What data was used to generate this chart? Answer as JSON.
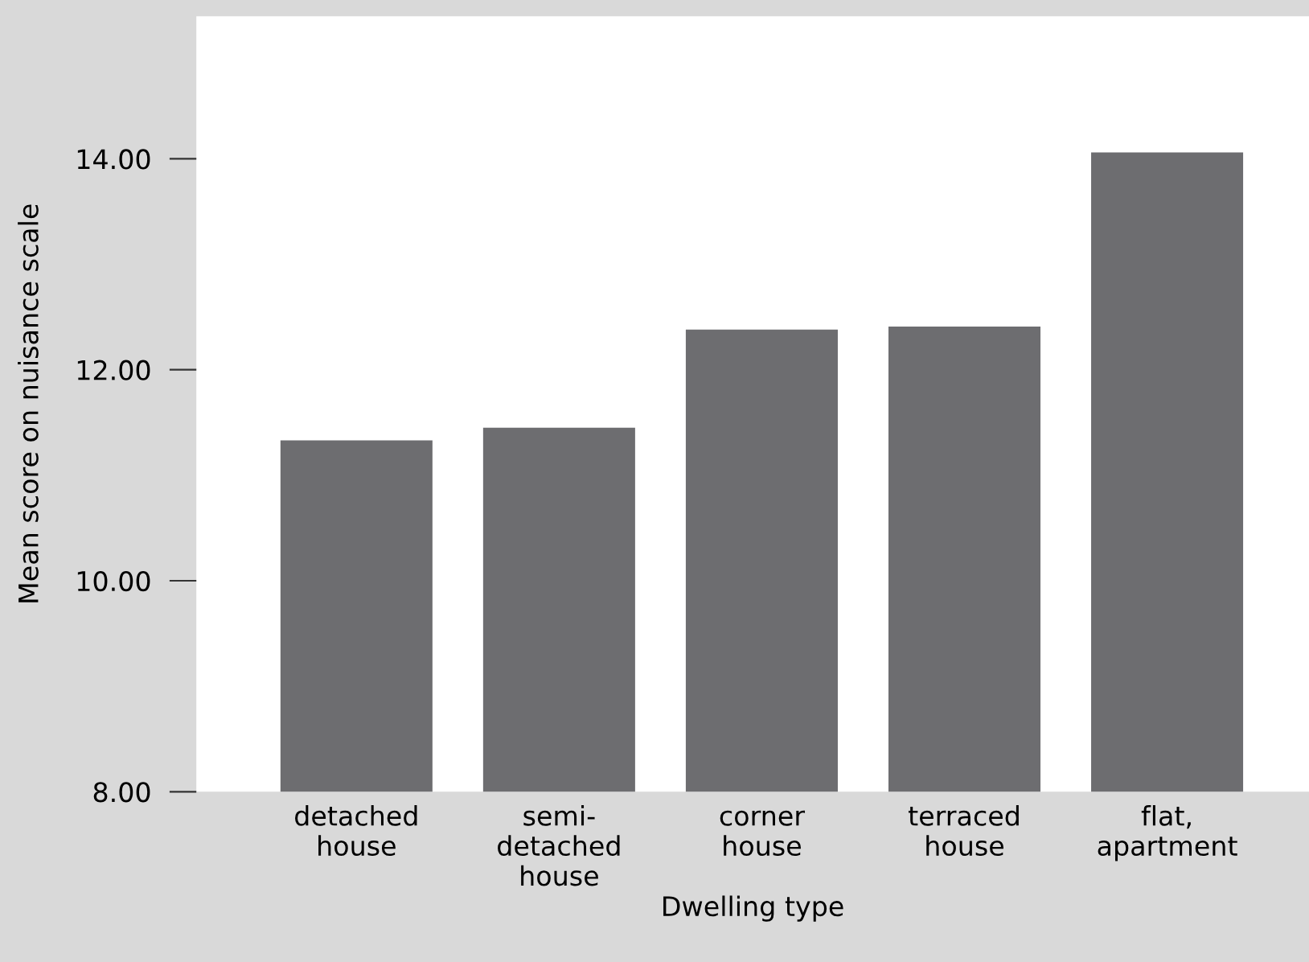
{
  "chart_data": {
    "type": "bar",
    "xlabel": "Dwelling type",
    "ylabel": "Mean score on nuisance scale",
    "categories": [
      "detached\nhouse",
      "semi-\ndetached\nhouse",
      "corner\nhouse",
      "terraced\nhouse",
      "flat,\napartment"
    ],
    "values": [
      11.33,
      11.45,
      12.38,
      12.41,
      14.06
    ],
    "color": "#6d6d70",
    "ylim": [
      8,
      15.35
    ],
    "yticks": [
      {
        "value": 8,
        "label": "8.00"
      },
      {
        "value": 10,
        "label": "10.00"
      },
      {
        "value": 12,
        "label": "12.00"
      },
      {
        "value": 14,
        "label": "14.00"
      }
    ],
    "grid": false
  }
}
